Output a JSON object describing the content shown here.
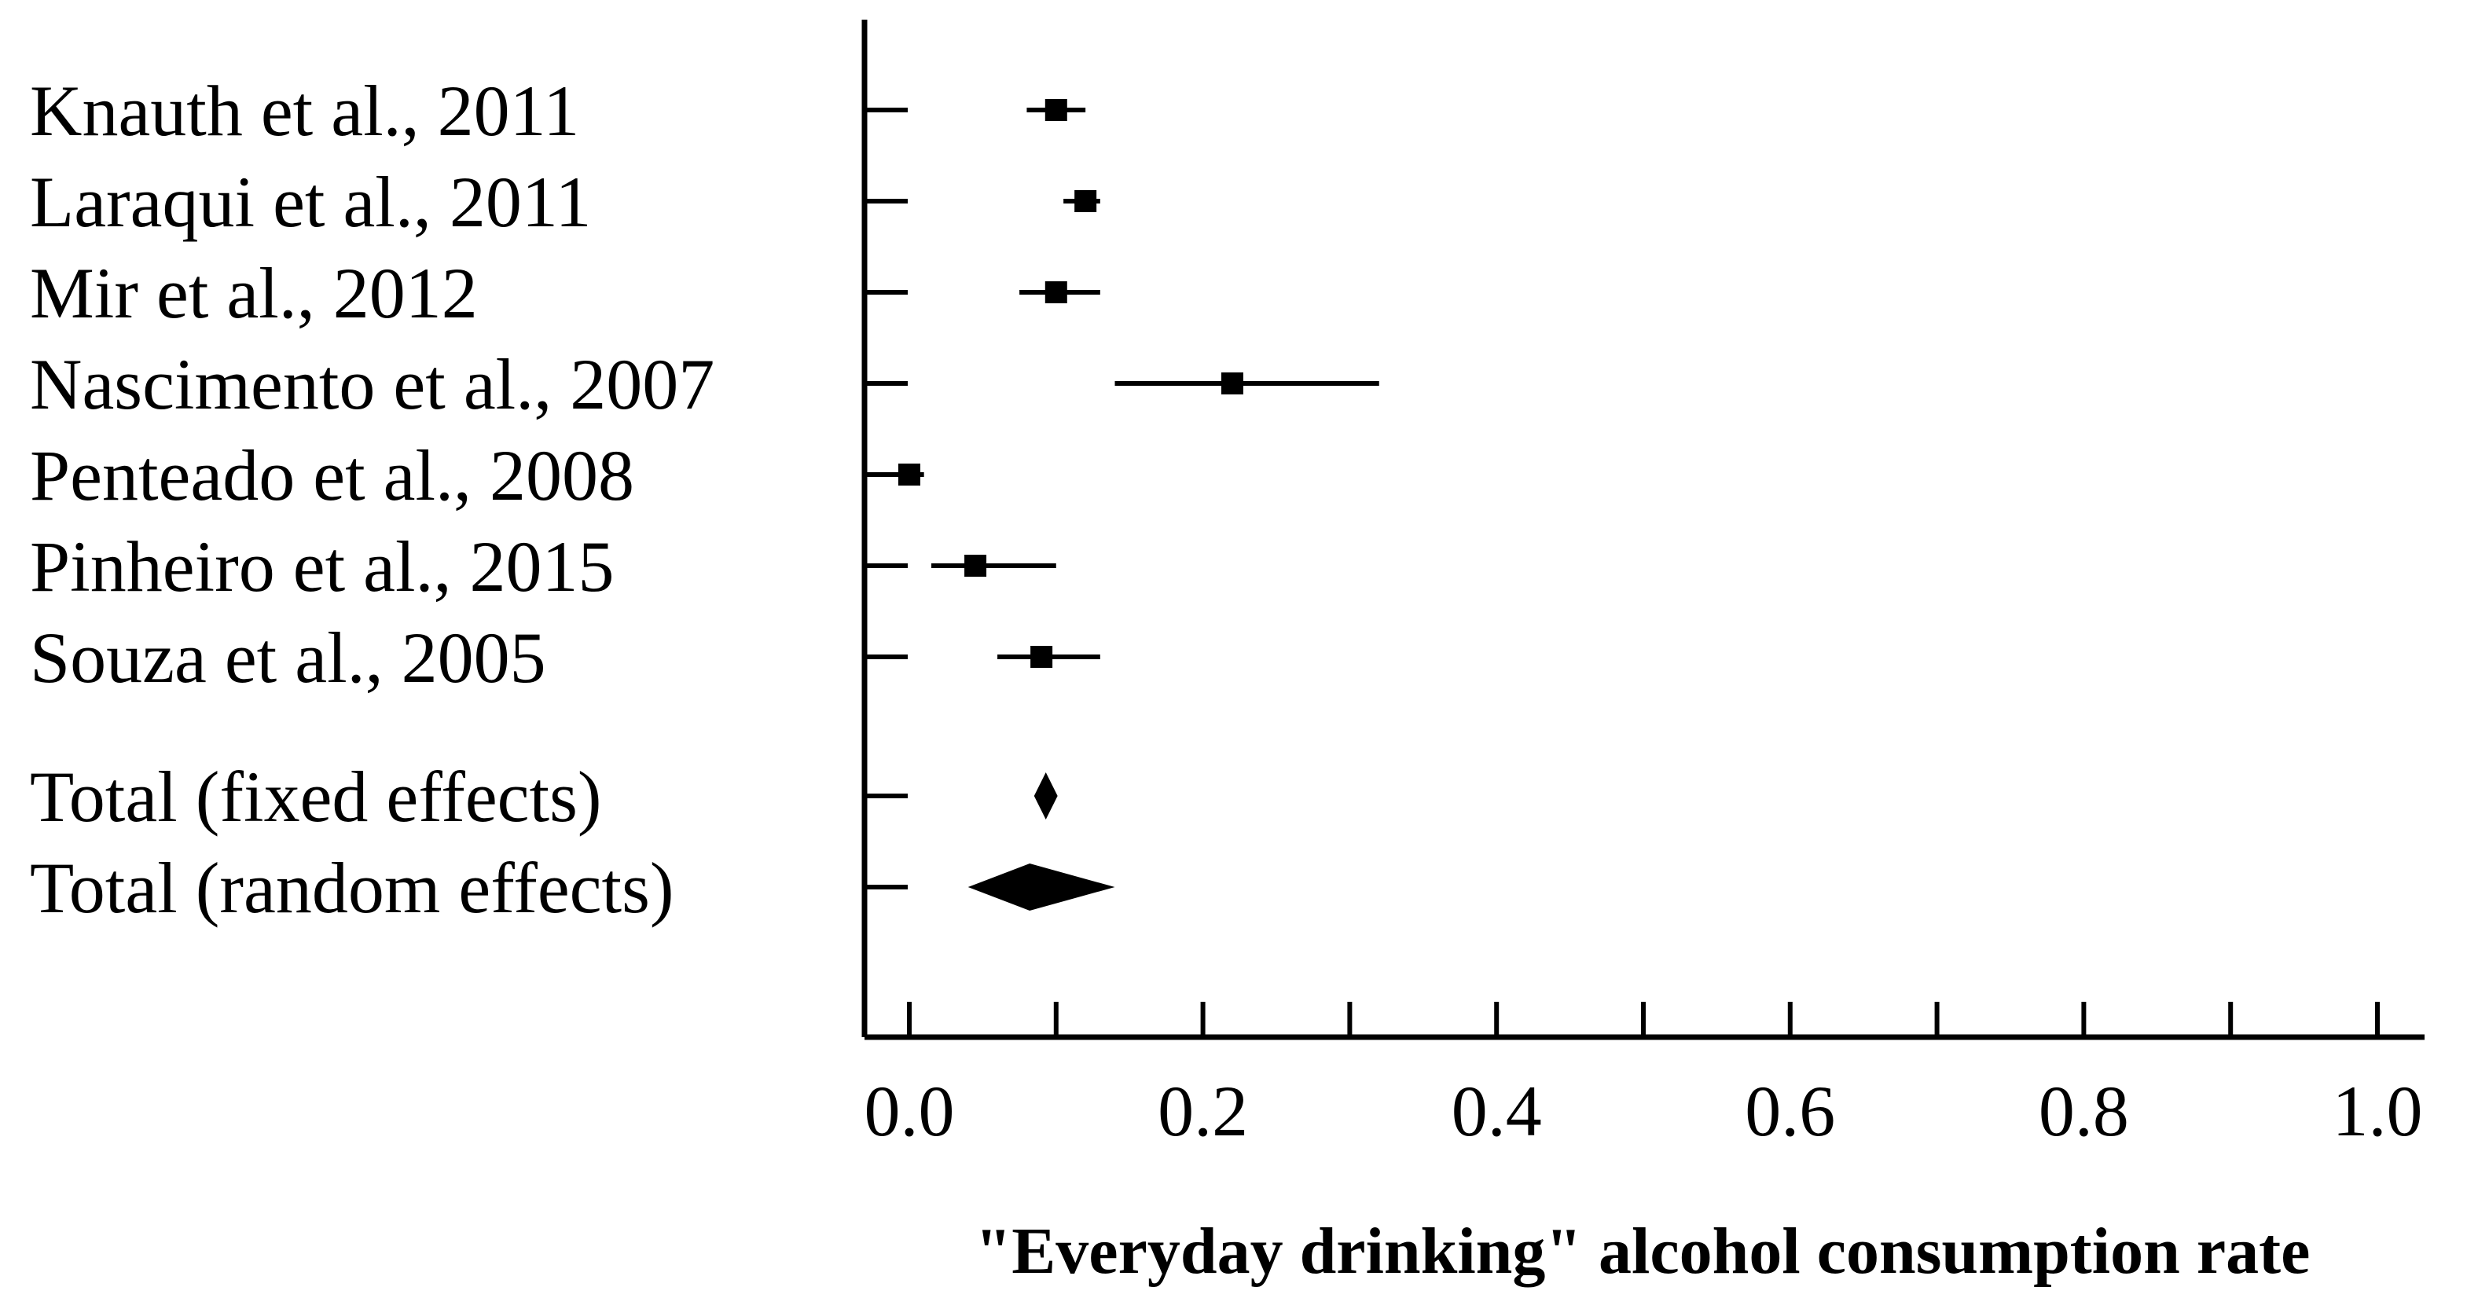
{
  "chart_data": {
    "type": "forest",
    "xlabel": "\"Everyday drinking\" alcohol consumption rate",
    "xlim": [
      0,
      1
    ],
    "xticks": [
      0,
      0.1,
      0.2,
      0.3,
      0.4,
      0.5,
      0.6,
      0.7,
      0.8,
      0.9,
      1.0
    ],
    "xtick_labels": [
      "0.0",
      "0.2",
      "0.4",
      "0.6",
      "0.8",
      "1.0"
    ],
    "xtick_label_values": [
      0,
      0.2,
      0.4,
      0.6,
      0.8,
      1.0
    ],
    "studies": [
      {
        "label": "Knauth et al., 2011",
        "estimate": 0.1,
        "lower": 0.08,
        "upper": 0.12
      },
      {
        "label": "Laraqui et al., 2011",
        "estimate": 0.12,
        "lower": 0.105,
        "upper": 0.13
      },
      {
        "label": "Mir et al., 2012",
        "estimate": 0.1,
        "lower": 0.075,
        "upper": 0.13
      },
      {
        "label": "Nascimento et al., 2007",
        "estimate": 0.22,
        "lower": 0.14,
        "upper": 0.32
      },
      {
        "label": "Penteado et al., 2008",
        "estimate": 0.0,
        "lower": -0.005,
        "upper": 0.01
      },
      {
        "label": "Pinheiro et al., 2015",
        "estimate": 0.045,
        "lower": 0.015,
        "upper": 0.1
      },
      {
        "label": "Souza et al., 2005",
        "estimate": 0.09,
        "lower": 0.06,
        "upper": 0.13
      }
    ],
    "totals": [
      {
        "label": "Total (fixed effects)",
        "estimate": 0.093,
        "lower": 0.085,
        "upper": 0.101
      },
      {
        "label": "Total (random effects)",
        "estimate": 0.082,
        "lower": 0.04,
        "upper": 0.14
      }
    ]
  }
}
